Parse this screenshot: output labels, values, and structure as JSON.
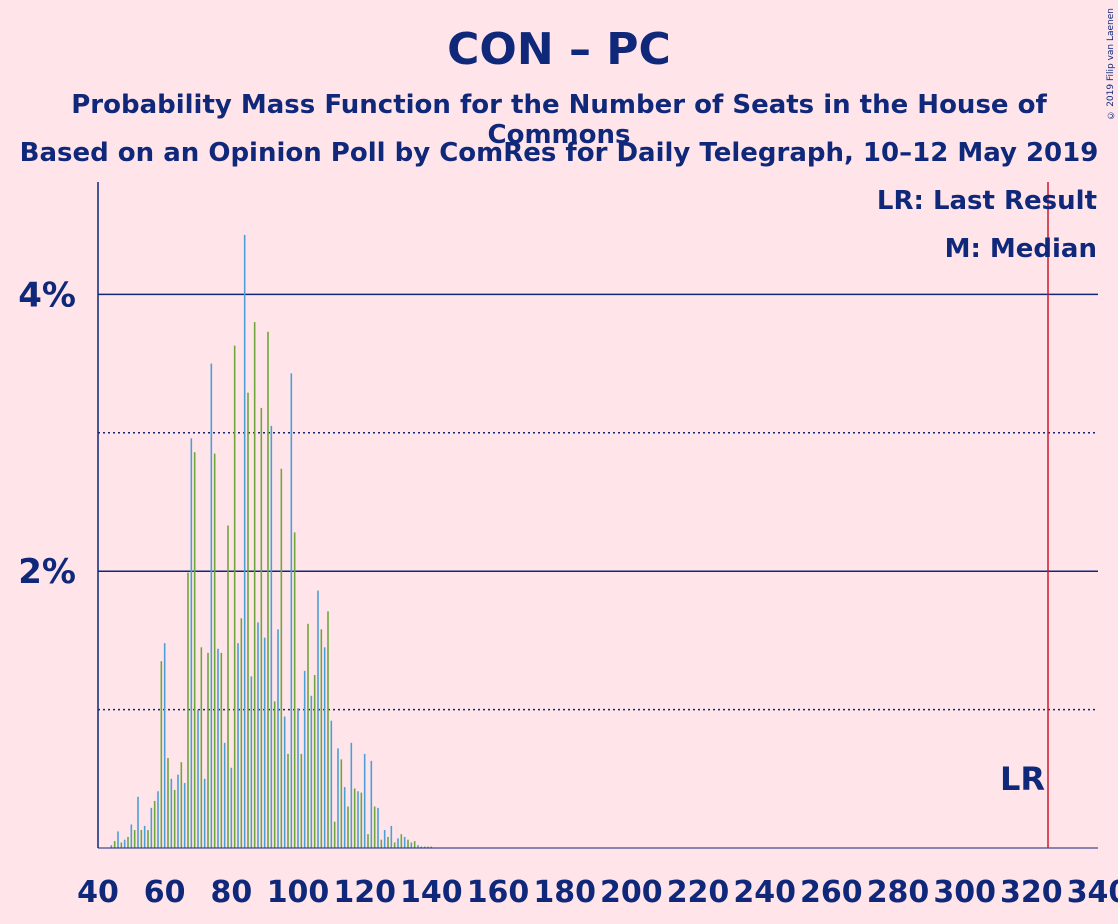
{
  "title": "CON – PC",
  "subtitle1": "Probability Mass Function for the Number of Seats in the House of Commons",
  "subtitle2": "Based on an Opinion Poll by ComRes for Daily Telegraph, 10–12 May 2019",
  "copyright": "© 2019 Filip van Laenen",
  "legend": {
    "lr": "LR: Last Result",
    "m": "M: Median"
  },
  "lr_marker_label": "LR",
  "colors": {
    "background": "#FFE5EA",
    "text": "#0F287A",
    "bar_blue": "#4C9ED6",
    "bar_green": "#6FA63C",
    "last_result": "#CC1A33"
  },
  "chart_data": {
    "type": "bar",
    "x_range": [
      40,
      340
    ],
    "y_range": [
      0,
      4.8
    ],
    "x_ticks": [
      40,
      60,
      80,
      100,
      120,
      140,
      160,
      180,
      200,
      220,
      240,
      260,
      280,
      300,
      320,
      340
    ],
    "y_ticks_labeled": [
      {
        "value": 2,
        "label": "2%"
      },
      {
        "value": 4,
        "label": "4%"
      }
    ],
    "y_gridlines_dotted": [
      1,
      3
    ],
    "last_result": 325,
    "seats": [
      44,
      45,
      46,
      47,
      48,
      49,
      50,
      51,
      52,
      53,
      54,
      55,
      56,
      57,
      58,
      59,
      60,
      61,
      62,
      63,
      64,
      65,
      66,
      67,
      68,
      69,
      70,
      71,
      72,
      73,
      74,
      75,
      76,
      77,
      78,
      79,
      80,
      81,
      82,
      83,
      84,
      85,
      86,
      87,
      88,
      89,
      90,
      91,
      92,
      93,
      94,
      95,
      96,
      97,
      98,
      99,
      100,
      101,
      102,
      103,
      104,
      105,
      106,
      107,
      108,
      109,
      110,
      111,
      112,
      113,
      114,
      115,
      116,
      117,
      118,
      119,
      120,
      121,
      122,
      123,
      124,
      125,
      126,
      127,
      128,
      129,
      130,
      131,
      132,
      133,
      134,
      135,
      136,
      137,
      138,
      139,
      140
    ],
    "probabilities": [
      0.02,
      0.05,
      0.12,
      0.04,
      0.06,
      0.08,
      0.17,
      0.13,
      0.37,
      0.13,
      0.16,
      0.13,
      0.29,
      0.34,
      0.41,
      1.35,
      1.48,
      0.65,
      0.5,
      0.42,
      0.53,
      0.62,
      0.47,
      1.99,
      2.96,
      2.86,
      1.0,
      1.45,
      0.5,
      1.41,
      3.5,
      2.85,
      1.44,
      1.41,
      0.76,
      2.33,
      0.58,
      3.63,
      1.48,
      1.66,
      4.43,
      3.29,
      1.24,
      3.8,
      1.63,
      3.18,
      1.52,
      3.73,
      3.05,
      1.06,
      1.58,
      2.74,
      0.95,
      0.68,
      3.43,
      2.28,
      1.01,
      0.68,
      1.28,
      1.62,
      1.1,
      1.25,
      1.86,
      1.58,
      1.45,
      1.71,
      0.92,
      0.19,
      0.72,
      0.64,
      0.44,
      0.3,
      0.76,
      0.43,
      0.41,
      0.4,
      0.68,
      0.1,
      0.63,
      0.3,
      0.29,
      0.06,
      0.13,
      0.08,
      0.16,
      0.04,
      0.07,
      0.1,
      0.08,
      0.06,
      0.04,
      0.05,
      0.02,
      0.01,
      0.01,
      0.01,
      0.01
    ],
    "bar_colors": [
      "blue",
      "green",
      "blue",
      "green",
      "blue",
      "green",
      "blue",
      "green",
      "blue",
      "green",
      "blue",
      "green",
      "blue",
      "green",
      "blue",
      "green",
      "blue",
      "green",
      "blue",
      "green",
      "blue",
      "green",
      "blue",
      "green",
      "blue",
      "green",
      "blue",
      "green",
      "blue",
      "green",
      "blue",
      "green",
      "blue",
      "green",
      "blue",
      "green",
      "blue",
      "green",
      "blue",
      "green",
      "blue",
      "green",
      "blue",
      "green",
      "blue",
      "green",
      "blue",
      "green",
      "blue",
      "green",
      "blue",
      "green",
      "blue",
      "green",
      "blue",
      "green",
      "blue",
      "green",
      "blue",
      "green",
      "blue",
      "green",
      "blue",
      "green",
      "blue",
      "green",
      "blue",
      "green",
      "blue",
      "green",
      "blue",
      "green",
      "blue",
      "green",
      "blue",
      "green",
      "blue",
      "green",
      "blue",
      "green",
      "blue",
      "green",
      "blue",
      "green",
      "blue",
      "green",
      "blue",
      "green",
      "blue",
      "green",
      "blue",
      "green",
      "blue",
      "green",
      "blue"
    ]
  }
}
